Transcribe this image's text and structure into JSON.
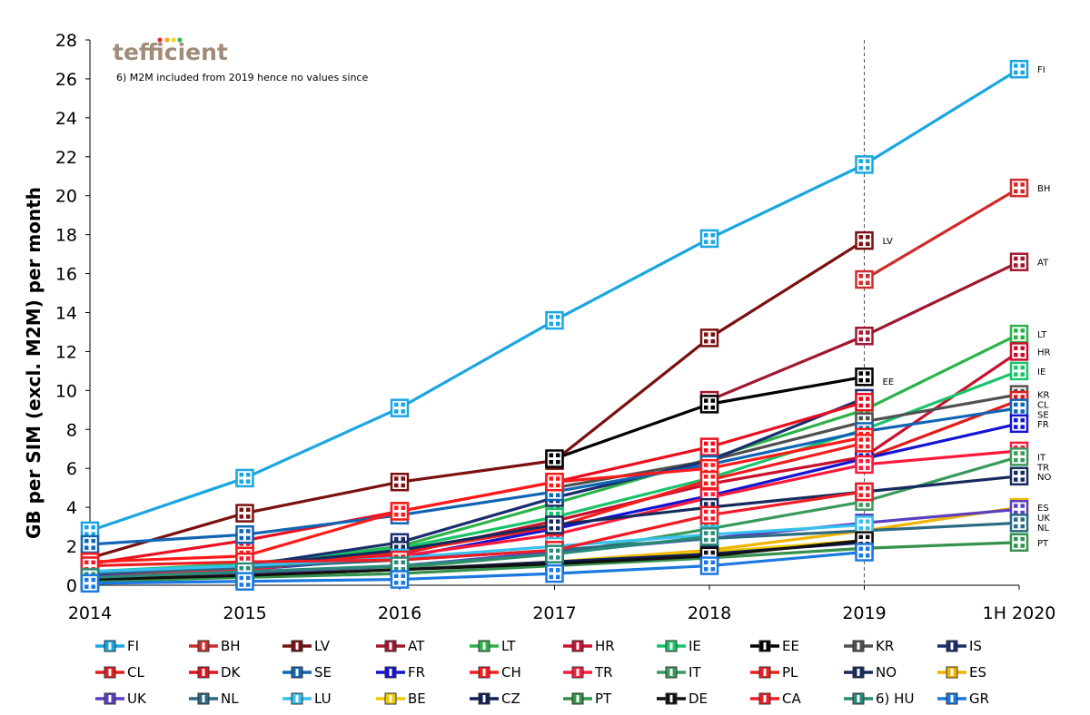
{
  "brand": {
    "text": "tefficient",
    "dot_colors": [
      "#e8352b",
      "#f5a623",
      "#f2d21d",
      "#3fb34f"
    ]
  },
  "note": "6) M2M included from 2019 hence no values since",
  "chart_data": {
    "type": "line",
    "title": "",
    "xlabel": "",
    "ylabel": "GB per SIM (excl. M2M) per month",
    "x": [
      "2014",
      "2015",
      "2016",
      "2017",
      "2018",
      "2019",
      "1H 2020"
    ],
    "ylim": [
      0,
      28
    ],
    "yticks": [
      0,
      2,
      4,
      6,
      8,
      10,
      12,
      14,
      16,
      18,
      20,
      22,
      24,
      26,
      28
    ],
    "vline_at": "2019",
    "series": [
      {
        "name": "FI",
        "color": "#1aa6e0",
        "values": [
          2.8,
          5.5,
          9.1,
          13.6,
          17.8,
          21.6,
          26.5
        ]
      },
      {
        "name": "BH",
        "color": "#d02b2b",
        "values": [
          null,
          null,
          null,
          null,
          null,
          15.7,
          20.4
        ]
      },
      {
        "name": "LV",
        "color": "#7a1010",
        "values": [
          1.4,
          3.7,
          5.3,
          6.4,
          12.7,
          17.7,
          null
        ]
      },
      {
        "name": "AT",
        "color": "#a0182f",
        "values": [
          null,
          null,
          null,
          null,
          9.5,
          12.8,
          16.6
        ]
      },
      {
        "name": "LT",
        "color": "#2db24a",
        "values": [
          0.6,
          1.0,
          2.0,
          4.2,
          6.5,
          9.0,
          12.9
        ]
      },
      {
        "name": "HR",
        "color": "#c8102e",
        "values": [
          0.5,
          0.9,
          1.6,
          3.3,
          5.2,
          6.6,
          12.0
        ]
      },
      {
        "name": "IE",
        "color": "#19c46a",
        "values": [
          0.7,
          1.1,
          1.9,
          3.5,
          5.5,
          8.0,
          11.0
        ]
      },
      {
        "name": "EE",
        "color": "#000000",
        "values": [
          null,
          null,
          null,
          6.5,
          9.3,
          10.7,
          null
        ]
      },
      {
        "name": "KR",
        "color": "#505050",
        "values": [
          null,
          null,
          null,
          5.0,
          6.4,
          8.4,
          9.8
        ]
      },
      {
        "name": "IS",
        "color": "#1a2d6e",
        "values": [
          0.5,
          1.0,
          2.2,
          4.5,
          6.4,
          9.6,
          null
        ]
      },
      {
        "name": "CL",
        "color": "#e21c1c",
        "values": [
          null,
          null,
          null,
          null,
          null,
          6.5,
          9.5
        ]
      },
      {
        "name": "DK",
        "color": "#e8101f",
        "values": [
          1.1,
          2.3,
          3.8,
          5.3,
          7.1,
          9.4,
          null
        ]
      },
      {
        "name": "SE",
        "color": "#1064b4",
        "values": [
          2.1,
          2.6,
          3.6,
          4.8,
          6.2,
          7.9,
          9.1
        ]
      },
      {
        "name": "FR",
        "color": "#1414d2",
        "values": [
          0.5,
          0.8,
          1.4,
          2.9,
          4.6,
          6.5,
          8.3
        ]
      },
      {
        "name": "CH",
        "color": "#ff1a1a",
        "values": [
          1.2,
          1.5,
          3.8,
          5.3,
          6.0,
          7.6,
          null
        ]
      },
      {
        "name": "TR",
        "color": "#ff1a3c",
        "values": [
          0.4,
          0.8,
          1.5,
          2.6,
          4.5,
          6.2,
          6.9
        ]
      },
      {
        "name": "IT",
        "color": "#3a9a5c",
        "values": [
          0.3,
          0.5,
          0.9,
          1.6,
          2.9,
          4.3,
          6.6
        ]
      },
      {
        "name": "PL",
        "color": "#f01e1e",
        "values": [
          0.6,
          0.9,
          1.7,
          3.0,
          5.4,
          7.3,
          null
        ]
      },
      {
        "name": "NO",
        "color": "#152a5c",
        "values": [
          0.6,
          1.0,
          1.8,
          3.1,
          4.0,
          4.8,
          5.6
        ]
      },
      {
        "name": "ES",
        "color": "#f0b400",
        "values": [
          0.3,
          0.5,
          0.8,
          1.2,
          1.8,
          2.8,
          4.0
        ]
      },
      {
        "name": "UK",
        "color": "#5b3fbe",
        "values": [
          0.4,
          0.6,
          1.0,
          1.7,
          2.4,
          3.2,
          3.9
        ]
      },
      {
        "name": "NL",
        "color": "#2b6a82",
        "values": [
          0.6,
          0.9,
          1.3,
          1.8,
          2.4,
          2.8,
          3.2
        ]
      },
      {
        "name": "LU",
        "color": "#35c2f0",
        "values": [
          0.7,
          1.0,
          1.4,
          2.0,
          2.6,
          3.1,
          null
        ]
      },
      {
        "name": "BE",
        "color": "#f0c800",
        "values": [
          0.3,
          0.5,
          0.8,
          1.2,
          1.7,
          2.3,
          null
        ]
      },
      {
        "name": "CZ",
        "color": "#10205a",
        "values": [
          0.2,
          0.5,
          0.8,
          1.2,
          1.6,
          2.2,
          null
        ]
      },
      {
        "name": "PT",
        "color": "#34924c",
        "values": [
          0.2,
          0.4,
          0.6,
          1.0,
          1.4,
          1.9,
          2.2
        ]
      },
      {
        "name": "DE",
        "color": "#111111",
        "values": [
          0.3,
          0.5,
          0.8,
          1.1,
          1.5,
          2.3,
          null
        ]
      },
      {
        "name": "CA",
        "color": "#ee1c25",
        "values": [
          1.0,
          1.2,
          1.3,
          1.8,
          3.6,
          4.8,
          null
        ]
      },
      {
        "name": "6) HU",
        "color": "#2a8a78",
        "values": [
          0.4,
          0.7,
          1.0,
          1.6,
          2.5,
          null,
          null
        ]
      },
      {
        "name": "GR",
        "color": "#1a78e0",
        "values": [
          0.1,
          0.2,
          0.3,
          0.6,
          1.0,
          1.7,
          null
        ]
      }
    ],
    "end_labels": [
      "FI",
      "BH",
      "LV",
      "AT",
      "LT",
      "HR",
      "IE",
      "EE",
      "KR",
      "CL",
      "SE",
      "FR",
      "IT",
      "TR",
      "NO",
      "ES",
      "UK",
      "NL",
      "PT"
    ]
  }
}
